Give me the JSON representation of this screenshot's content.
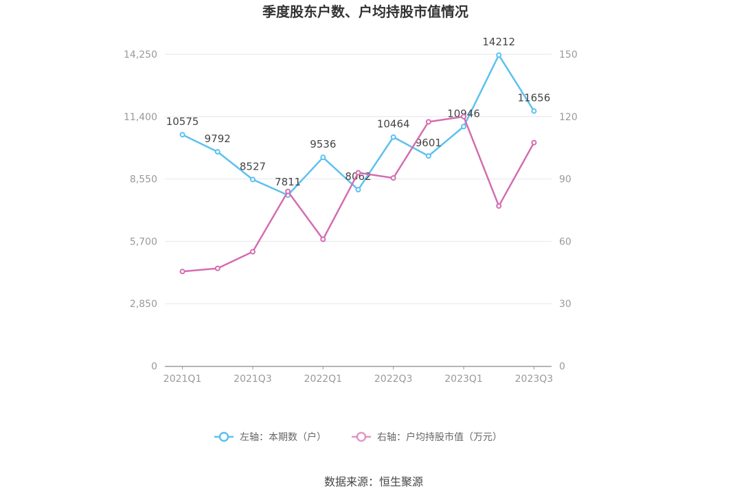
{
  "chart_data": {
    "type": "line",
    "title": "季度股东户数、户均持股市值情况",
    "categories": [
      "2021Q1",
      "2021Q2",
      "2021Q3",
      "2021Q4",
      "2022Q1",
      "2022Q2",
      "2022Q3",
      "2022Q4",
      "2023Q1",
      "2023Q2",
      "2023Q3"
    ],
    "x_tick_labels": [
      "2021Q1",
      "2021Q3",
      "2022Q1",
      "2022Q3",
      "2023Q1",
      "2023Q3"
    ],
    "left_axis": {
      "ticks": [
        "0",
        "2,850",
        "5,700",
        "8,550",
        "11,400",
        "14,250"
      ],
      "ylim": [
        0,
        14250
      ]
    },
    "right_axis": {
      "ticks": [
        "0",
        "30",
        "60",
        "90",
        "120",
        "150"
      ],
      "ylim": [
        0,
        150
      ]
    },
    "grid": true,
    "legend_position": "bottom",
    "series": [
      {
        "name": "左轴：本期数（户）",
        "axis": "left",
        "color": "#5bc0f0",
        "values": [
          10575,
          9792,
          8527,
          7811,
          9536,
          8062,
          10464,
          9601,
          10946,
          14212,
          11656
        ],
        "labels": [
          "10575",
          "9792",
          "8527",
          "7811",
          "9536",
          "8062",
          "10464",
          "9601",
          "10946",
          "14212",
          "11656"
        ]
      },
      {
        "name": "右轴：户均持股市值（万元）",
        "axis": "right",
        "color": "#d46cb0",
        "values": [
          45.5,
          47,
          55,
          84,
          61,
          93,
          90.5,
          117.5,
          120,
          77,
          107.5
        ]
      }
    ]
  },
  "source": "数据来源：恒生聚源"
}
